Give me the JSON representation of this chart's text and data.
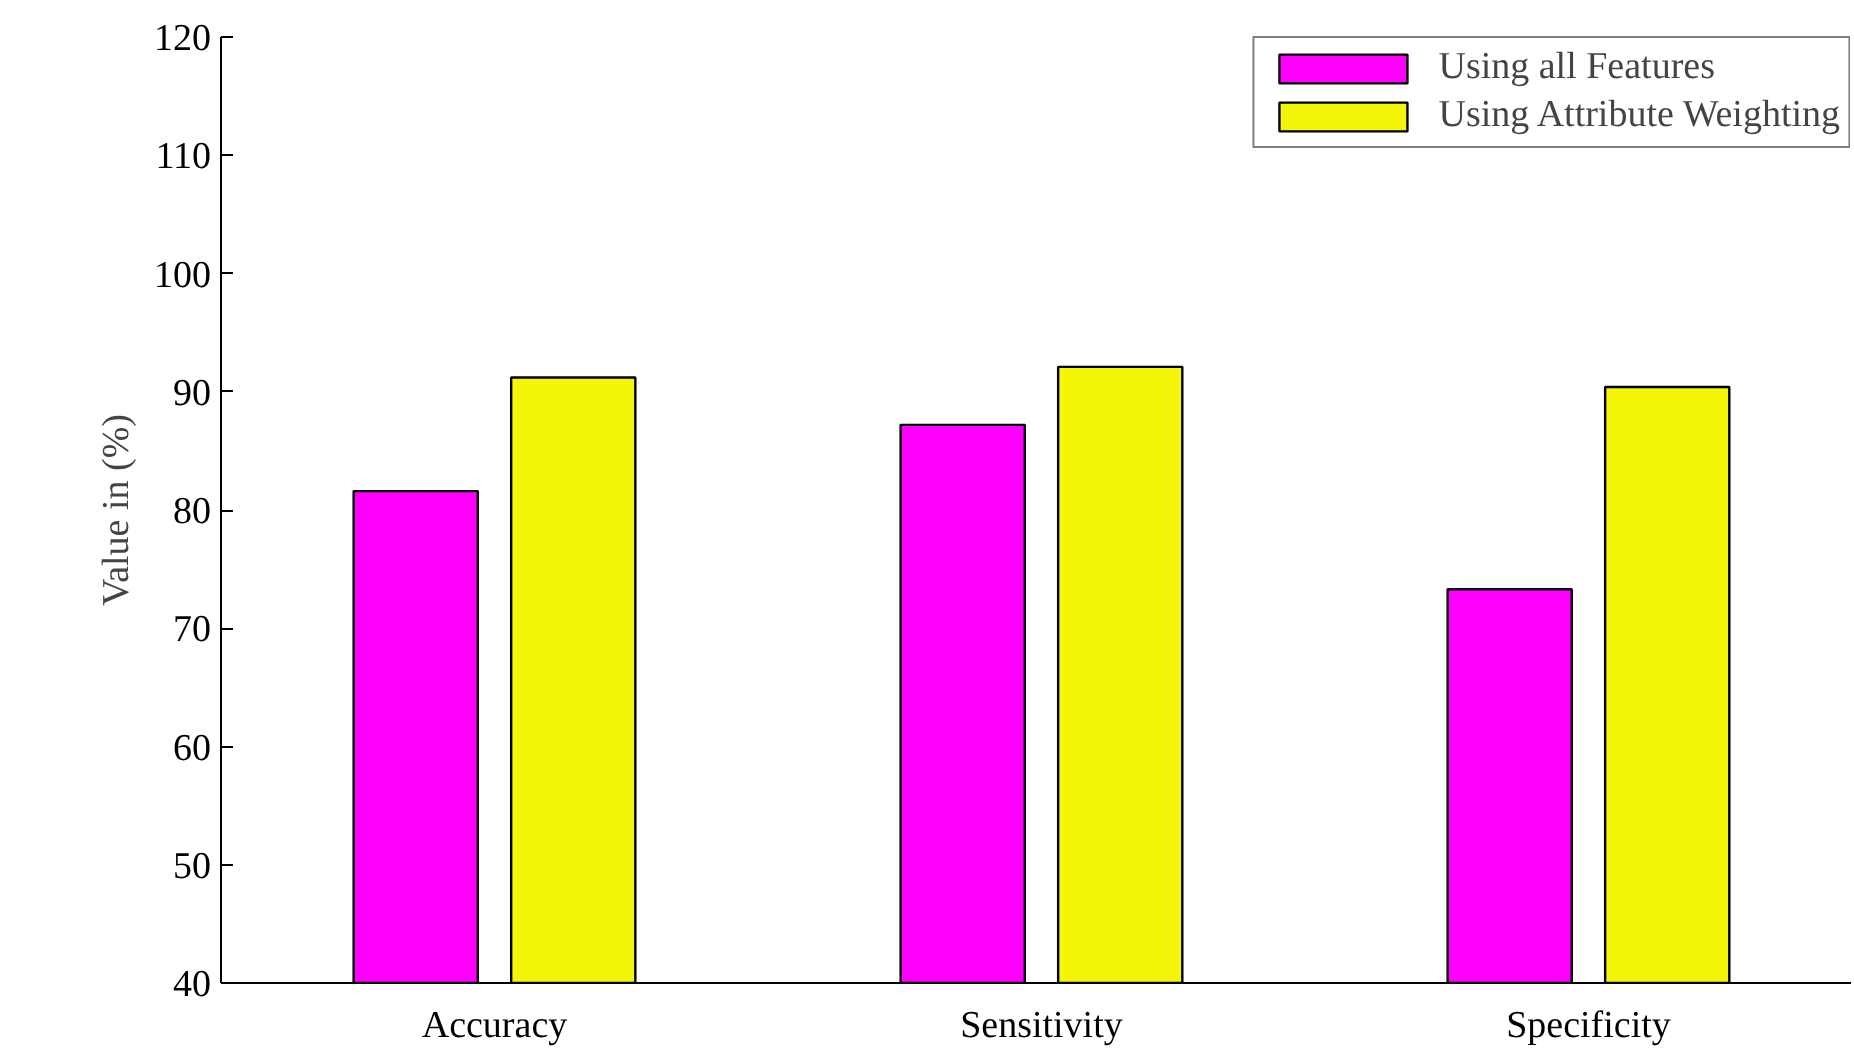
{
  "chart_data": {
    "type": "bar",
    "ylabel": "Value in (%)",
    "categories": [
      "Accuracy",
      "Sensitivity",
      "Specificity"
    ],
    "series": [
      {
        "name": "Using all Features",
        "color": "#ff00ff",
        "values": [
          81.6,
          87.2,
          73.3
        ]
      },
      {
        "name": "Using Attribute Weighting",
        "color": "#f5f50a",
        "values": [
          91.2,
          92.1,
          90.4
        ]
      }
    ],
    "ylim": [
      40,
      120
    ],
    "yticks": [
      40,
      50,
      60,
      70,
      80,
      90,
      100,
      110,
      120
    ],
    "grid": false,
    "legend": "top right"
  }
}
